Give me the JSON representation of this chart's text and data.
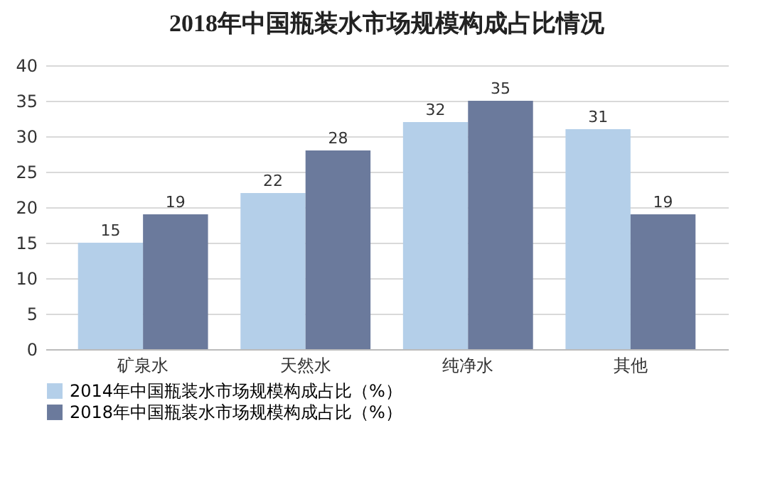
{
  "chart_data": {
    "type": "bar",
    "title": "2018年中国瓶装水市场规模构成占比情况",
    "categories": [
      "矿泉水",
      "天然水",
      "纯净水",
      "其他"
    ],
    "series": [
      {
        "name": "2014年中国瓶装水市场规模构成占比（%）",
        "color": "#b4cfe9",
        "values": [
          15,
          22,
          32,
          31
        ]
      },
      {
        "name": "2018年中国瓶装水市场规模构成占比（%）",
        "color": "#6b7a9c",
        "values": [
          19,
          28,
          35,
          19
        ]
      }
    ],
    "ylim": [
      0,
      40
    ],
    "yticks": [
      0,
      5,
      10,
      15,
      20,
      25,
      30,
      35,
      40
    ],
    "grid": "y",
    "legend": "bottom",
    "data_labels": true
  }
}
